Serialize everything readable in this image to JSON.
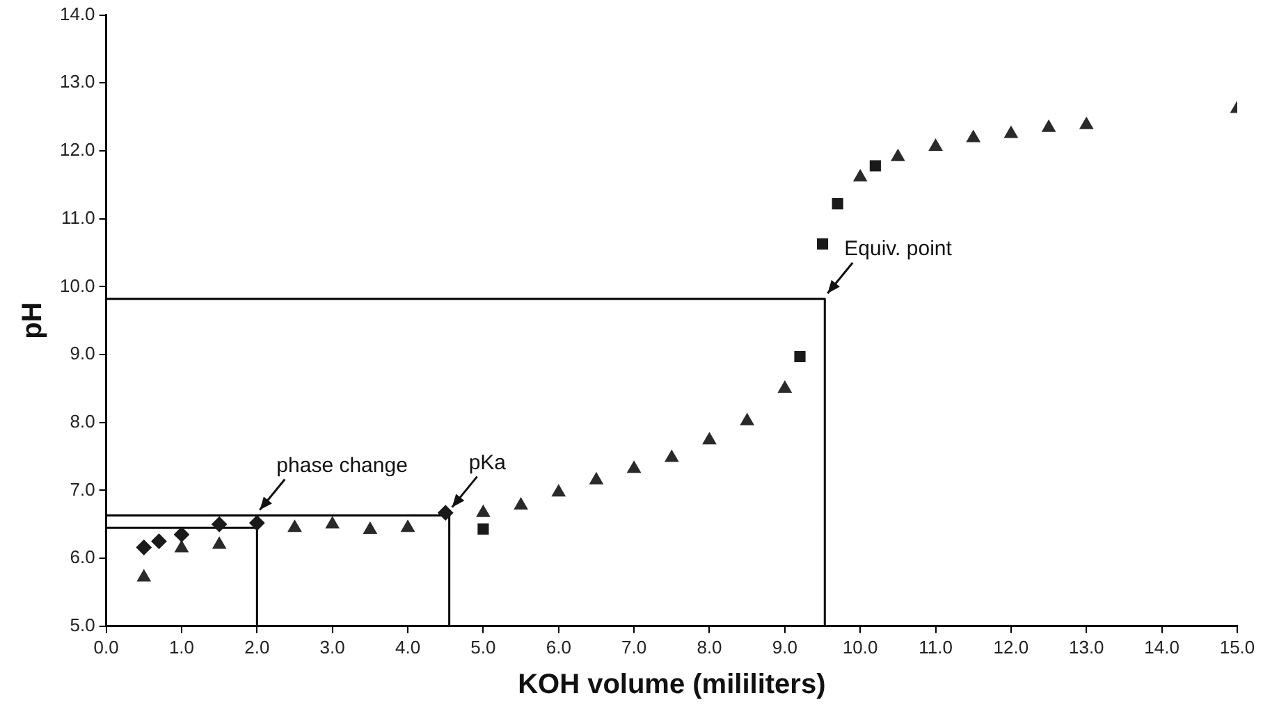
{
  "chart_data": {
    "type": "scatter",
    "xlabel": "KOH volume (mililiters)",
    "ylabel": "pH",
    "xlim": [
      0,
      15
    ],
    "ylim": [
      5,
      14
    ],
    "xticks": [
      {
        "value": 0,
        "label": "0.0"
      },
      {
        "value": 1,
        "label": "1.0"
      },
      {
        "value": 2,
        "label": "2.0"
      },
      {
        "value": 3,
        "label": "3.0"
      },
      {
        "value": 4,
        "label": "4.0"
      },
      {
        "value": 5,
        "label": "5.0"
      },
      {
        "value": 6,
        "label": "6.0"
      },
      {
        "value": 7,
        "label": "7.0"
      },
      {
        "value": 8,
        "label": "8.0"
      },
      {
        "value": 9,
        "label": "9.0"
      },
      {
        "value": 10,
        "label": "10.0"
      },
      {
        "value": 11,
        "label": "11.0"
      },
      {
        "value": 12,
        "label": "12.0"
      },
      {
        "value": 13,
        "label": "13.0"
      },
      {
        "value": 14,
        "label": "14.0"
      },
      {
        "value": 15,
        "label": "15.0"
      }
    ],
    "yticks": [
      {
        "value": 5,
        "label": "5.0"
      },
      {
        "value": 6,
        "label": "6.0"
      },
      {
        "value": 7,
        "label": "7.0"
      },
      {
        "value": 8,
        "label": "8.0"
      },
      {
        "value": 9,
        "label": "9.0"
      },
      {
        "value": 10,
        "label": "10.0"
      },
      {
        "value": 11,
        "label": "11.0"
      },
      {
        "value": 12,
        "label": "12.0"
      },
      {
        "value": 13,
        "label": "13.0"
      },
      {
        "value": 14,
        "label": "14.0"
      }
    ],
    "grid": false,
    "legend": false,
    "series": [
      {
        "marker": "diamond",
        "color": "#1a1a1a",
        "x": [
          0.5,
          0.7,
          1.0,
          1.5,
          2.0,
          4.5
        ],
        "values": [
          6.16,
          6.25,
          6.35,
          6.5,
          6.52,
          6.67
        ]
      },
      {
        "marker": "triangle",
        "color": "#2a2a2a",
        "x": [
          0.5,
          1.0,
          1.5,
          2.5,
          3.0,
          3.5,
          4.0,
          5.0,
          5.5,
          6.0,
          6.5,
          7.0,
          7.5,
          8.0,
          8.5,
          9.0,
          10.0,
          10.5,
          11.0,
          11.5,
          12.0,
          12.5,
          13.0,
          15.0
        ],
        "values": [
          5.72,
          6.15,
          6.2,
          6.45,
          6.5,
          6.42,
          6.45,
          6.67,
          6.78,
          6.97,
          7.15,
          7.32,
          7.48,
          7.74,
          8.02,
          8.5,
          11.61,
          11.91,
          12.06,
          12.19,
          12.25,
          12.34,
          12.38,
          12.62
        ]
      },
      {
        "marker": "square",
        "color": "#1a1a1a",
        "x": [
          5.0,
          9.2,
          9.5,
          9.7,
          10.2
        ],
        "values": [
          6.43,
          8.97,
          10.63,
          11.22,
          11.78
        ]
      },
      {
        "type": "line",
        "marker": "none",
        "color": "#000000",
        "x": [
          0,
          2.0,
          2.0
        ],
        "values": [
          6.45,
          6.45,
          5.0
        ]
      },
      {
        "type": "line",
        "marker": "none",
        "color": "#000000",
        "x": [
          0,
          4.55,
          4.55
        ],
        "values": [
          6.63,
          6.63,
          5.0
        ]
      },
      {
        "type": "line",
        "marker": "none",
        "color": "#000000",
        "x": [
          0,
          9.53,
          9.53
        ],
        "values": [
          9.82,
          9.82,
          5.0
        ]
      }
    ],
    "annotations": [
      {
        "text": "phase change",
        "x": 2.0,
        "y": 6.63
      },
      {
        "text": "pKa",
        "x": 4.55,
        "y": 6.67
      },
      {
        "text": "Equiv. point",
        "x": 9.53,
        "y": 9.82
      }
    ]
  }
}
